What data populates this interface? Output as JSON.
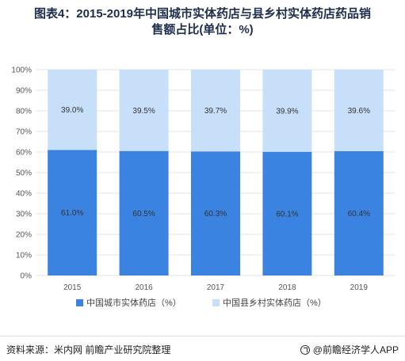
{
  "title": {
    "line1": "图表4：2015-2019年中国城市实体药店与县乡村实体药店药品销",
    "line2": "售额占比(单位：%)"
  },
  "colors": {
    "series_urban": "#3b83e0",
    "series_rural": "#c8dffa",
    "grid": "#e3e3e3"
  },
  "chart_data": {
    "type": "bar",
    "stacked": true,
    "title": "图表4：2015-2019年中国城市实体药店与县乡村实体药店药品销售额占比(单位：%)",
    "categories": [
      "2015",
      "2016",
      "2017",
      "2018",
      "2019"
    ],
    "series": [
      {
        "name": "中国城市实体药店（%）",
        "values": [
          61.0,
          60.5,
          60.3,
          60.1,
          60.4
        ],
        "labels": [
          "61.0%",
          "60.5%",
          "60.3%",
          "60.1%",
          "60.4%"
        ]
      },
      {
        "name": "中国县乡村实体药店（%）",
        "values": [
          39.0,
          39.5,
          39.7,
          39.9,
          39.6
        ],
        "labels": [
          "39.0%",
          "39.5%",
          "39.7%",
          "39.9%",
          "39.6%"
        ]
      }
    ],
    "yticks": [
      "0%",
      "10%",
      "20%",
      "30%",
      "40%",
      "50%",
      "60%",
      "70%",
      "80%",
      "90%",
      "100%"
    ],
    "ylim": [
      0,
      100
    ],
    "xlabel": "",
    "ylabel": "",
    "grid": true,
    "legend_position": "bottom"
  },
  "footer": {
    "source": "资料来源：米内网 前瞻产业研究院整理",
    "brand": "@前瞻经济学人APP",
    "brand_icon": "qianzhan-logo-icon"
  }
}
